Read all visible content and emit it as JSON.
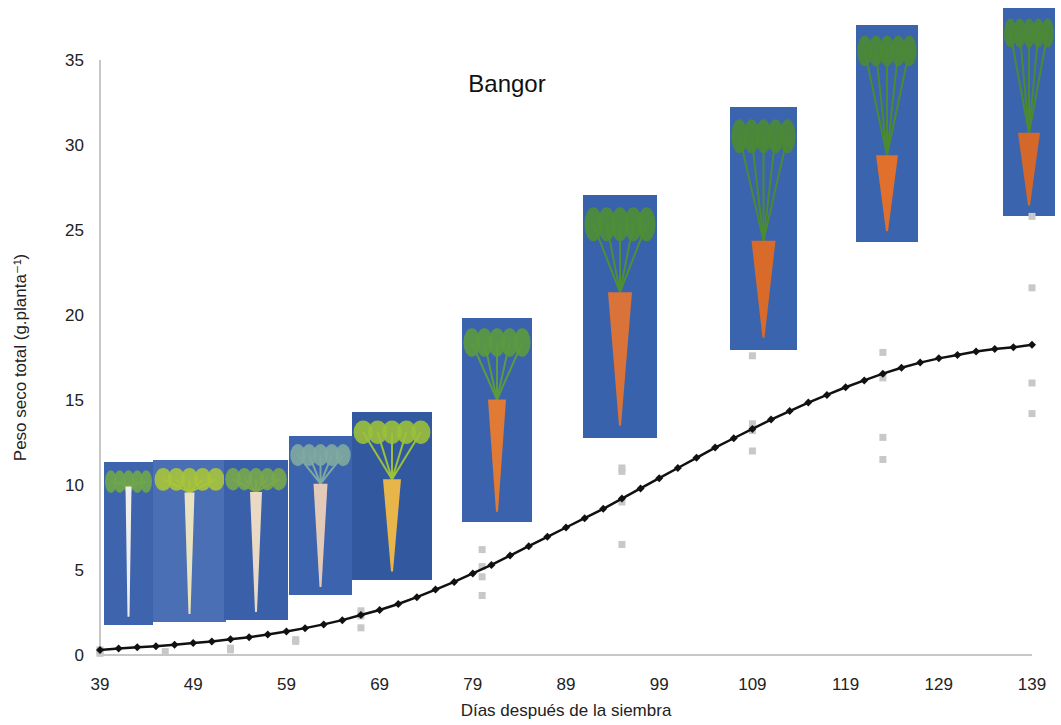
{
  "chart_data": {
    "type": "line",
    "title": "Bangor",
    "x_label": "Días después de la siembra",
    "y_label": "Peso seco total (g.planta⁻¹)",
    "xlim": [
      39,
      139
    ],
    "xticks": [
      39,
      49,
      59,
      69,
      79,
      89,
      99,
      109,
      119,
      129,
      139
    ],
    "ylim": [
      0,
      35
    ],
    "yticks": [
      0,
      5,
      10,
      15,
      20,
      25,
      30,
      35
    ],
    "grid": false,
    "series": [
      {
        "type": "line",
        "color": "#111111",
        "marker": "diamond",
        "line_style": "solid",
        "x": [
          39,
          41,
          43,
          45,
          47,
          49,
          51,
          53,
          55,
          57,
          59,
          61,
          63,
          65,
          67,
          69,
          71,
          73,
          75,
          77,
          79,
          81,
          83,
          85,
          87,
          89,
          91,
          93,
          95,
          97,
          99,
          101,
          103,
          105,
          107,
          109,
          111,
          113,
          115,
          117,
          119,
          121,
          123,
          125,
          127,
          129,
          131,
          133,
          135,
          137,
          139
        ],
        "values": [
          0.3,
          0.38,
          0.45,
          0.52,
          0.6,
          0.7,
          0.8,
          0.92,
          1.05,
          1.2,
          1.38,
          1.58,
          1.8,
          2.05,
          2.35,
          2.65,
          3.0,
          3.4,
          3.85,
          4.3,
          4.8,
          5.3,
          5.85,
          6.4,
          6.95,
          7.5,
          8.05,
          8.6,
          9.2,
          9.8,
          10.4,
          11.0,
          11.6,
          12.2,
          12.75,
          13.3,
          13.85,
          14.35,
          14.85,
          15.3,
          15.75,
          16.15,
          16.55,
          16.9,
          17.2,
          17.45,
          17.65,
          17.85,
          18.0,
          18.1,
          18.25
        ]
      },
      {
        "type": "scatter",
        "color": "#c8c8c8",
        "marker": "square",
        "x": [
          39,
          39,
          39,
          46,
          53,
          53,
          60,
          60,
          67,
          67,
          67,
          80,
          80,
          80,
          80,
          95,
          95,
          95,
          95,
          109,
          109,
          109,
          109,
          123,
          123,
          123,
          123,
          139,
          139,
          139,
          139
        ],
        "values": [
          0.1,
          0.2,
          0.3,
          0.2,
          0.3,
          0.4,
          0.8,
          0.9,
          1.6,
          2.3,
          2.6,
          3.5,
          4.6,
          5.2,
          6.2,
          6.5,
          9.0,
          10.8,
          11.0,
          12.0,
          13.2,
          13.6,
          17.6,
          11.5,
          12.8,
          16.3,
          17.8,
          14.2,
          16.0,
          21.6,
          25.8
        ]
      }
    ]
  }
}
